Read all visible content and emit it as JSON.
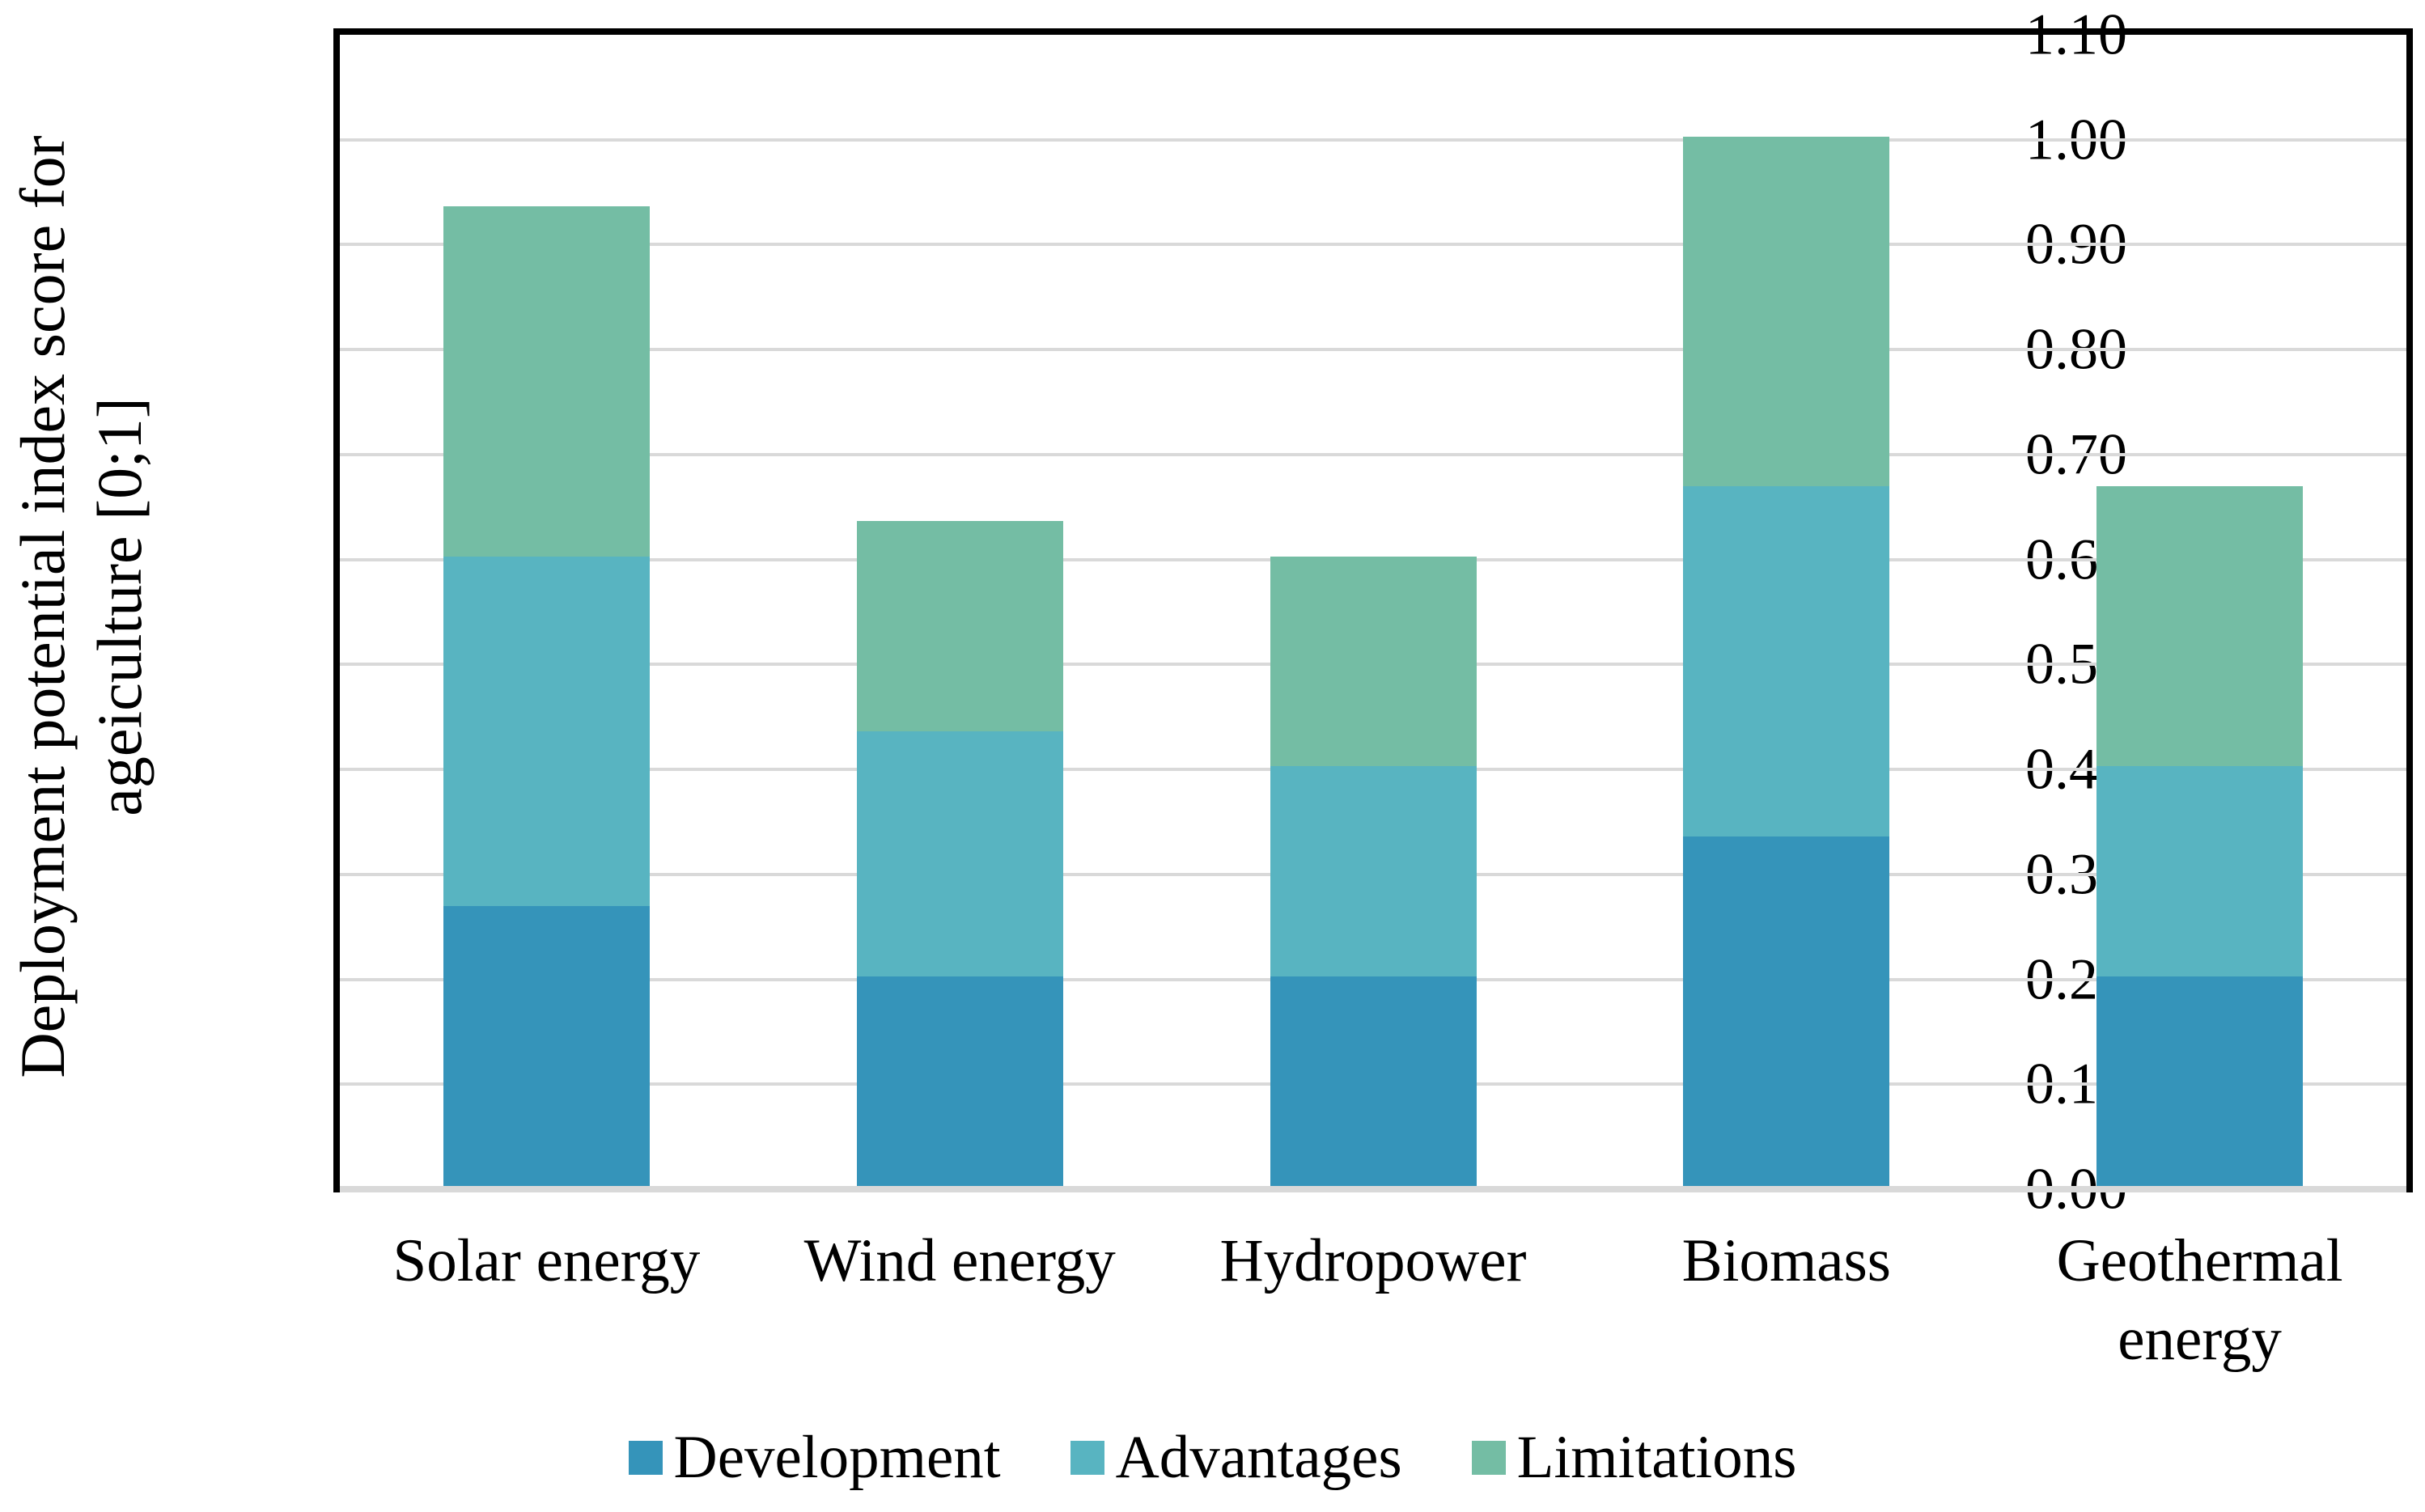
{
  "chart_data": {
    "type": "bar",
    "stacked": true,
    "title": "",
    "ylabel_line1": "Deployment potential index score for",
    "ylabel_line2": "ageiculture [0;1]",
    "xlabel": "",
    "ylim": [
      0.0,
      1.1
    ],
    "ytick_step": 0.1,
    "yticks": [
      "0.00",
      "0.10",
      "0.20",
      "0.30",
      "0.40",
      "0.50",
      "0.60",
      "0.70",
      "0.80",
      "0.90",
      "1.00",
      "1.10"
    ],
    "ytick_values": [
      0.0,
      0.1,
      0.2,
      0.3,
      0.4,
      0.5,
      0.6,
      0.7,
      0.8,
      0.9,
      1.0,
      1.1
    ],
    "grid": true,
    "legend_position": "bottom",
    "categories": [
      "Solar energy",
      "Wind energy",
      "Hydropower",
      "Biomass",
      "Geothermal energy"
    ],
    "series": [
      {
        "name": "Development",
        "color": "#3594BA",
        "values": [
          0.2667,
          0.2,
          0.2,
          0.3333,
          0.2
        ]
      },
      {
        "name": "Advantages",
        "color": "#58B4C1",
        "values": [
          0.3333,
          0.2333,
          0.2,
          0.3333,
          0.2
        ]
      },
      {
        "name": "Limitations",
        "color": "#74BDA4",
        "values": [
          0.3333,
          0.2,
          0.2,
          0.3333,
          0.2667
        ]
      }
    ],
    "stack_totals": [
      0.933,
      0.633,
      0.6,
      1.0,
      0.667
    ],
    "colors": {
      "gridline": "#D9D9D9",
      "baseline": "#D9D9D9",
      "frame": "#000000",
      "text": "#000000",
      "background": "#FFFFFF"
    }
  }
}
